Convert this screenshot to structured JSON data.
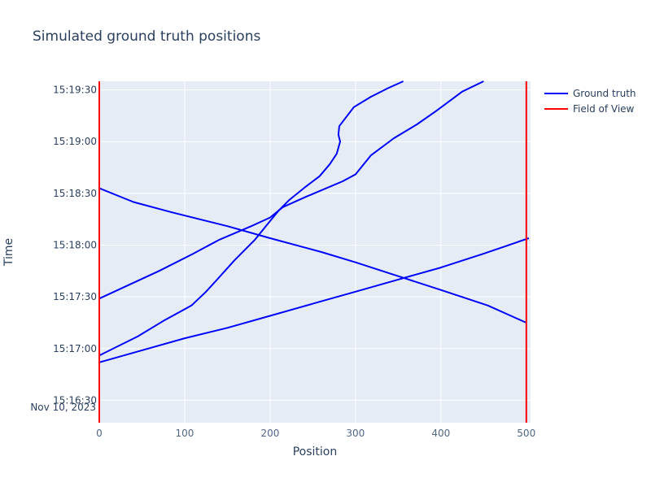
{
  "chart_data": {
    "type": "line",
    "title": "Simulated ground truth positions",
    "xlabel": "Position",
    "ylabel": "Time",
    "xlim": [
      0,
      505
    ],
    "ylim": [
      "2023-11-10T15:16:17",
      "2023-11-10T15:19:35"
    ],
    "x_ticks": [
      0,
      100,
      200,
      300,
      400,
      500
    ],
    "y_ticks": [
      {
        "t": "2023-11-10T15:16:30",
        "label": "15:16:30"
      },
      {
        "t": "2023-11-10T15:17:00",
        "label": "15:17:00"
      },
      {
        "t": "2023-11-10T15:17:30",
        "label": "15:17:30"
      },
      {
        "t": "2023-11-10T15:18:00",
        "label": "15:18:00"
      },
      {
        "t": "2023-11-10T15:18:30",
        "label": "15:18:30"
      },
      {
        "t": "2023-11-10T15:19:00",
        "label": "15:19:00"
      },
      {
        "t": "2023-11-10T15:19:30",
        "label": "15:19:30"
      }
    ],
    "y_date_label": "Nov 10, 2023",
    "grid": true,
    "legend_position": "top-right",
    "series": [
      {
        "name": "Ground truth",
        "color": "#0000ff",
        "showlegend": true,
        "points": [
          [
            0,
            "2023-11-10T15:16:56"
          ],
          [
            45,
            "2023-11-10T15:17:07"
          ],
          [
            75,
            "2023-11-10T15:17:16"
          ],
          [
            108,
            "2023-11-10T15:17:25"
          ],
          [
            125,
            "2023-11-10T15:17:33"
          ],
          [
            138,
            "2023-11-10T15:17:40"
          ],
          [
            158,
            "2023-11-10T15:17:51"
          ],
          [
            182,
            "2023-11-10T15:18:03"
          ],
          [
            195,
            "2023-11-10T15:18:11"
          ],
          [
            210,
            "2023-11-10T15:18:20"
          ],
          [
            222,
            "2023-11-10T15:18:26"
          ],
          [
            242,
            "2023-11-10T15:18:34"
          ],
          [
            258,
            "2023-11-10T15:18:40"
          ],
          [
            270,
            "2023-11-10T15:18:47"
          ],
          [
            278,
            "2023-11-10T15:18:53"
          ],
          [
            282,
            "2023-11-10T15:19:00"
          ],
          [
            280,
            "2023-11-10T15:19:04"
          ],
          [
            281,
            "2023-11-10T15:19:09"
          ],
          [
            298,
            "2023-11-10T15:19:20"
          ],
          [
            318,
            "2023-11-10T15:19:26"
          ],
          [
            338,
            "2023-11-10T15:19:31"
          ],
          [
            356,
            "2023-11-10T15:19:35"
          ]
        ]
      },
      {
        "name": "Ground truth",
        "color": "#0000ff",
        "showlegend": false,
        "points": [
          [
            0,
            "2023-11-10T15:17:29"
          ],
          [
            35,
            "2023-11-10T15:17:37"
          ],
          [
            70,
            "2023-11-10T15:17:45"
          ],
          [
            110,
            "2023-11-10T15:17:55"
          ],
          [
            140,
            "2023-11-10T15:18:03"
          ],
          [
            178,
            "2023-11-10T15:18:11"
          ],
          [
            200,
            "2023-11-10T15:18:16"
          ],
          [
            215,
            "2023-11-10T15:18:22"
          ],
          [
            242,
            "2023-11-10T15:18:28"
          ],
          [
            285,
            "2023-11-10T15:18:37"
          ],
          [
            300,
            "2023-11-10T15:18:41"
          ],
          [
            318,
            "2023-11-10T15:18:52"
          ],
          [
            345,
            "2023-11-10T15:19:02"
          ],
          [
            372,
            "2023-11-10T15:19:10"
          ],
          [
            395,
            "2023-11-10T15:19:18"
          ],
          [
            425,
            "2023-11-10T15:19:29"
          ],
          [
            450,
            "2023-11-10T15:19:35"
          ]
        ]
      },
      {
        "name": "Ground truth",
        "color": "#0000ff",
        "showlegend": false,
        "points": [
          [
            0,
            "2023-11-10T15:18:33"
          ],
          [
            40,
            "2023-11-10T15:18:25"
          ],
          [
            85,
            "2023-11-10T15:18:19"
          ],
          [
            150,
            "2023-11-10T15:18:11"
          ],
          [
            200,
            "2023-11-10T15:18:04"
          ],
          [
            260,
            "2023-11-10T15:17:56"
          ],
          [
            300,
            "2023-11-10T15:17:50"
          ],
          [
            350,
            "2023-11-10T15:17:42"
          ],
          [
            400,
            "2023-11-10T15:17:34"
          ],
          [
            455,
            "2023-11-10T15:17:25"
          ],
          [
            500,
            "2023-11-10T15:17:15"
          ]
        ]
      },
      {
        "name": "Ground truth",
        "color": "#0000ff",
        "showlegend": false,
        "points": [
          [
            0,
            "2023-11-10T15:16:52"
          ],
          [
            50,
            "2023-11-10T15:16:59"
          ],
          [
            100,
            "2023-11-10T15:17:06"
          ],
          [
            150,
            "2023-11-10T15:17:12"
          ],
          [
            200,
            "2023-11-10T15:17:19"
          ],
          [
            250,
            "2023-11-10T15:17:26"
          ],
          [
            300,
            "2023-11-10T15:17:33"
          ],
          [
            350,
            "2023-11-10T15:17:40"
          ],
          [
            400,
            "2023-11-10T15:17:47"
          ],
          [
            450,
            "2023-11-10T15:17:55"
          ],
          [
            503,
            "2023-11-10T15:18:04"
          ]
        ]
      },
      {
        "name": "Field of View",
        "color": "#ff0000",
        "showlegend": true,
        "points": [
          [
            0,
            "2023-11-10T15:16:17"
          ],
          [
            0,
            "2023-11-10T15:19:35"
          ]
        ]
      },
      {
        "name": "Field of View",
        "color": "#ff0000",
        "showlegend": false,
        "points": [
          [
            500,
            "2023-11-10T15:16:17"
          ],
          [
            500,
            "2023-11-10T15:19:35"
          ]
        ]
      }
    ]
  },
  "legend": {
    "items": [
      {
        "label": "Ground truth",
        "color": "#0000ff"
      },
      {
        "label": "Field of View",
        "color": "#ff0000"
      }
    ]
  },
  "colors": {
    "plot_bg": "#e5ecf6",
    "grid": "#ffffff",
    "text": "#2a3f5f",
    "axis_text": "#506784"
  }
}
